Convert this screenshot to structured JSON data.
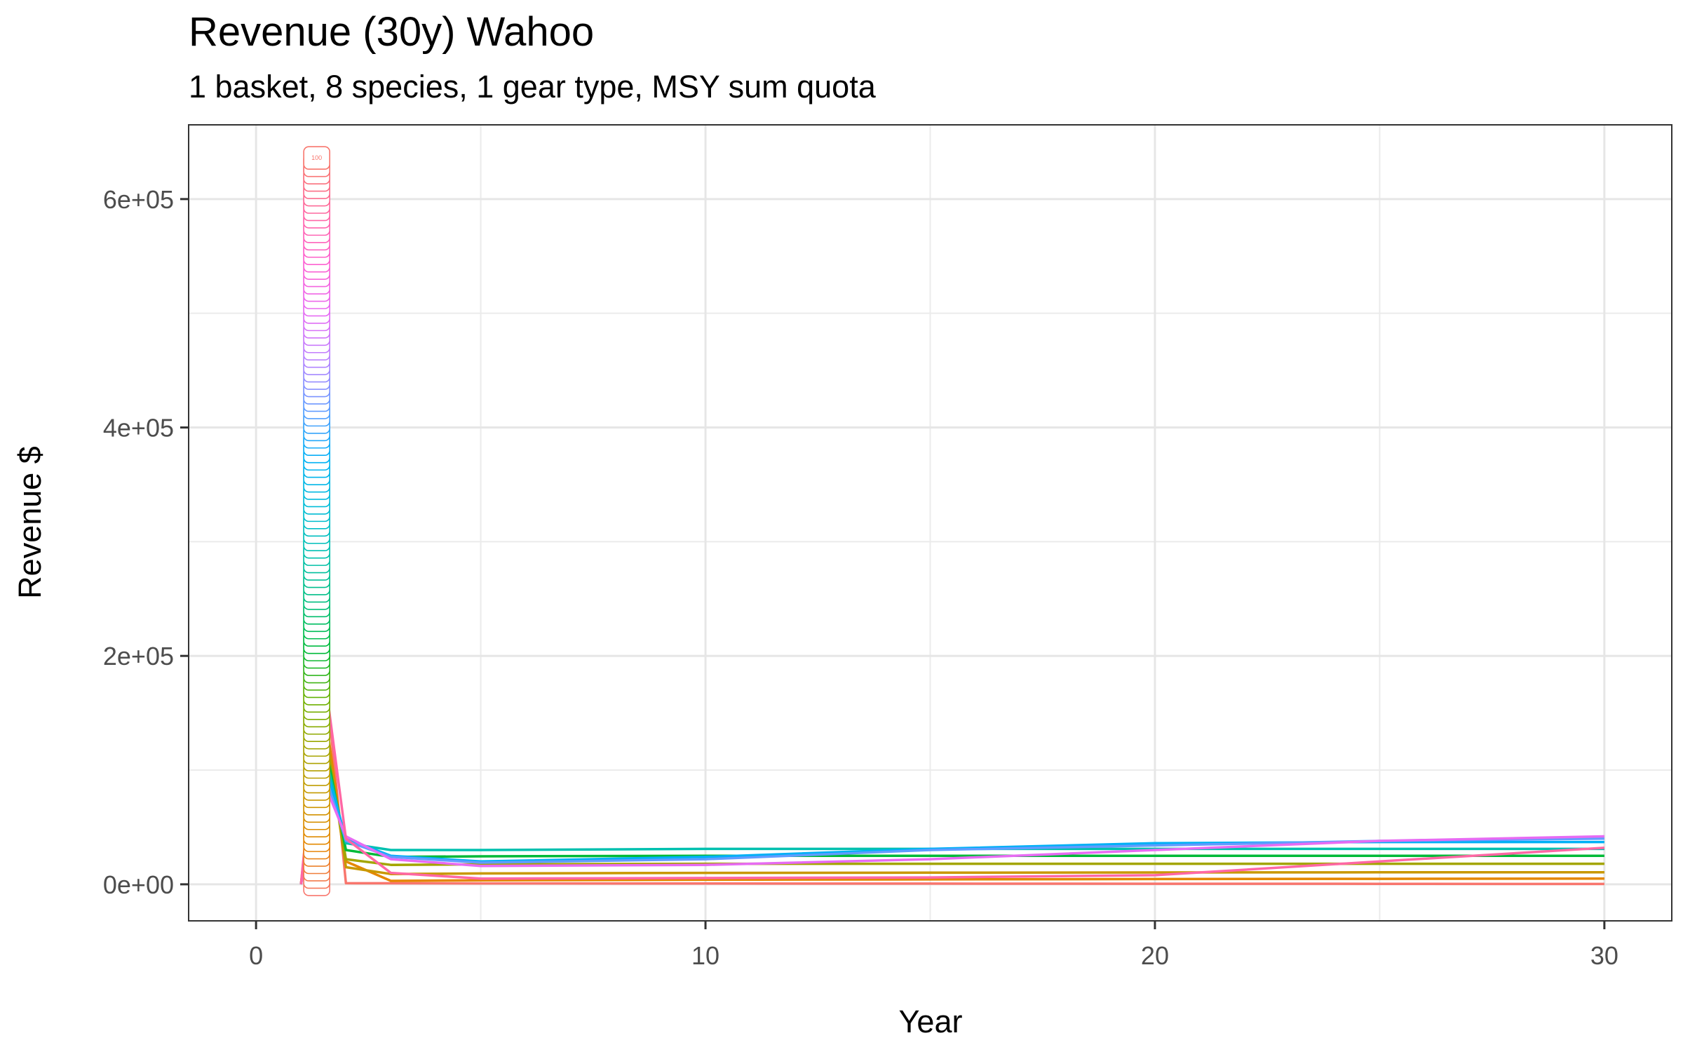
{
  "chart_data": {
    "type": "line",
    "title": "Revenue (30y) Wahoo",
    "subtitle": "1 basket, 8 species, 1 gear type, MSY sum quota",
    "xlabel": "Year",
    "ylabel": "Revenue $",
    "xlim": [
      -1.5,
      31.5
    ],
    "ylim": [
      -32000,
      665000
    ],
    "x_ticks": [
      0,
      10,
      20,
      30
    ],
    "x_tick_labels": [
      "0",
      "10",
      "20",
      "30"
    ],
    "y_ticks": [
      0,
      200000,
      400000,
      600000
    ],
    "y_tick_labels": [
      "0e+00",
      "2e+05",
      "4e+05",
      "6e+05"
    ],
    "grid": true,
    "legend": "none",
    "label_stack": {
      "x": 1.35,
      "count": 100,
      "max_value": 636000,
      "top_label": "100",
      "colors": [
        "#f8766d",
        "#e58700",
        "#c99800",
        "#a3a500",
        "#6bb100",
        "#00ba38",
        "#00bf7d",
        "#00c0af",
        "#00bcd8",
        "#00b0f6",
        "#619cff",
        "#b983ff",
        "#e76bf3",
        "#fd61d1",
        "#ff67a4",
        "#f8766d"
      ]
    },
    "series": [
      {
        "color": "#f8766d",
        "x": [
          1,
          1.5,
          2,
          3,
          5,
          10,
          15,
          20,
          25,
          30
        ],
        "y": [
          0,
          200000,
          1000,
          900,
          800,
          700,
          600,
          500,
          400,
          300
        ]
      },
      {
        "color": "#e58700",
        "x": [
          1,
          1.5,
          2,
          3,
          5,
          10,
          15,
          20,
          25,
          30
        ],
        "y": [
          0,
          160000,
          20000,
          3000,
          3500,
          4000,
          4300,
          4600,
          4800,
          5000
        ]
      },
      {
        "color": "#c99800",
        "x": [
          1,
          1.5,
          2,
          3,
          5,
          10,
          15,
          20,
          25,
          30
        ],
        "y": [
          0,
          150000,
          15000,
          9000,
          9500,
          10000,
          10200,
          10400,
          10500,
          10500
        ]
      },
      {
        "color": "#a3a500",
        "x": [
          1,
          1.5,
          2,
          3,
          5,
          10,
          15,
          20,
          25,
          30
        ],
        "y": [
          0,
          140000,
          22000,
          17000,
          17500,
          18000,
          18000,
          18000,
          18000,
          18000
        ]
      },
      {
        "color": "#00ba38",
        "x": [
          1,
          1.5,
          2,
          3,
          5,
          10,
          15,
          20,
          25,
          30
        ],
        "y": [
          0,
          130000,
          30000,
          24000,
          24500,
          25000,
          25000,
          25000,
          25000,
          25000
        ]
      },
      {
        "color": "#00c0af",
        "x": [
          1,
          1.5,
          2,
          3,
          5,
          10,
          15,
          20,
          25,
          30
        ],
        "y": [
          0,
          120000,
          36000,
          30000,
          30000,
          31000,
          31000,
          31000,
          31000,
          31000
        ]
      },
      {
        "color": "#00b0f6",
        "x": [
          1,
          1.5,
          2,
          3,
          5,
          10,
          15,
          20,
          25,
          30
        ],
        "y": [
          0,
          110000,
          40000,
          25000,
          20000,
          24000,
          31000,
          36000,
          37000,
          37000
        ]
      },
      {
        "color": "#619cff",
        "x": [
          1,
          1.5,
          2,
          3,
          5,
          10,
          15,
          20,
          25,
          30
        ],
        "y": [
          0,
          100000,
          38000,
          24000,
          19000,
          22000,
          30000,
          34000,
          38000,
          40000
        ]
      },
      {
        "color": "#e76bf3",
        "x": [
          1,
          1.5,
          2,
          3,
          5,
          10,
          15,
          20,
          25,
          30
        ],
        "y": [
          0,
          90000,
          42000,
          22000,
          16000,
          17000,
          22000,
          30000,
          38000,
          42000
        ]
      },
      {
        "color": "#ff67a4",
        "x": [
          1,
          1.5,
          2,
          3,
          5,
          10,
          15,
          20,
          25,
          30
        ],
        "y": [
          0,
          190000,
          40000,
          10000,
          5000,
          5500,
          6000,
          8000,
          20000,
          32000
        ]
      }
    ]
  }
}
